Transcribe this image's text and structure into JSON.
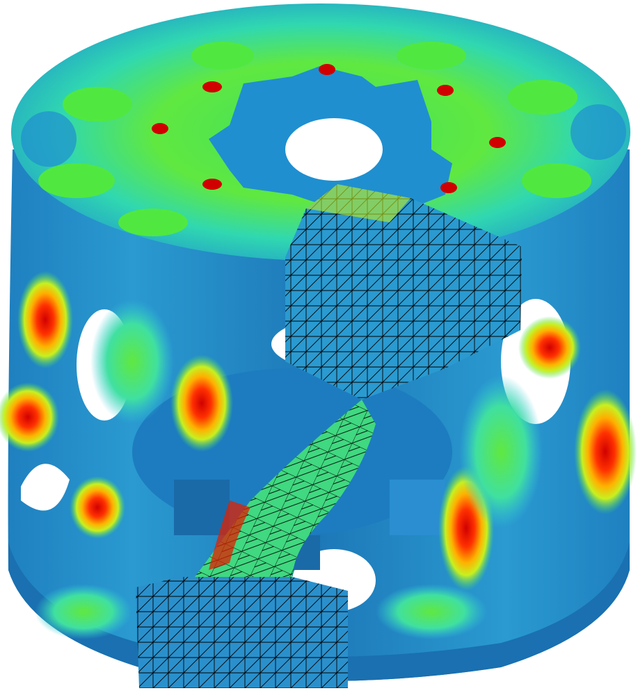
{
  "view": {
    "subject": "finite-element-stress-contour",
    "colormap": [
      "#1060c0",
      "#1f8fd0",
      "#3cc8e8",
      "#30e0c0",
      "#40e060",
      "#a0f020",
      "#f0f000",
      "#ffa000",
      "#ff4000",
      "#d00000"
    ],
    "background": "#ffffff",
    "mesh_line_color": "#000000"
  }
}
